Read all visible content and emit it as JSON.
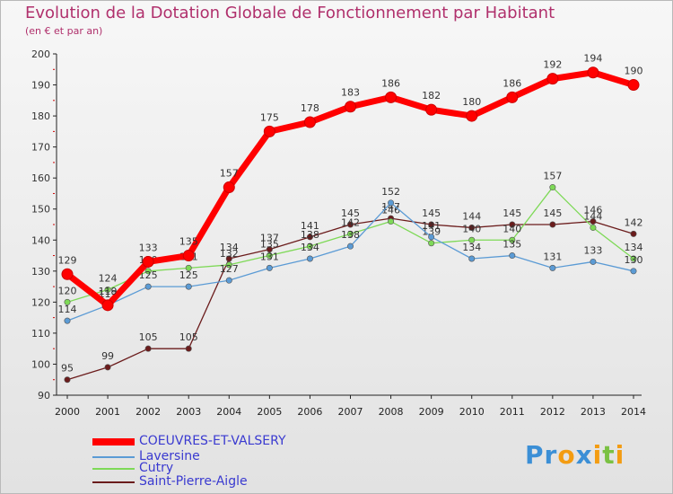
{
  "chart_data": {
    "type": "line",
    "title": "Evolution de la Dotation Globale de Fonctionnement par Habitant",
    "subtitle": "(en € et par an)",
    "ylim": [
      90,
      200
    ],
    "yticks": [
      90,
      100,
      110,
      120,
      130,
      140,
      150,
      160,
      170,
      180,
      190,
      200
    ],
    "x": [
      "2000",
      "2001",
      "2002",
      "2003",
      "2004",
      "2005",
      "2006",
      "2007",
      "2008",
      "2009",
      "2010",
      "2011",
      "2012",
      "2013",
      "2014"
    ],
    "series": [
      {
        "name": "COEUVRES-ET-VALSERY",
        "color": "#ff0000",
        "values": [
          129,
          119,
          133,
          135,
          157,
          175,
          178,
          183,
          186,
          182,
          180,
          186,
          192,
          194,
          190
        ]
      },
      {
        "name": "Laversine",
        "color": "#5b9bd5",
        "values": [
          114,
          119,
          125,
          125,
          127,
          131,
          134,
          138,
          152,
          141,
          134,
          135,
          131,
          133,
          130
        ]
      },
      {
        "name": "Cutry",
        "color": "#7ed957",
        "values": [
          120,
          124,
          130,
          131,
          132,
          135,
          138,
          142,
          146,
          139,
          140,
          140,
          157,
          144,
          134
        ]
      },
      {
        "name": "Saint-Pierre-Aigle",
        "color": "#6b1c1c",
        "values": [
          95,
          99,
          105,
          105,
          134,
          137,
          141,
          145,
          147,
          145,
          144,
          145,
          145,
          146,
          142
        ]
      }
    ]
  },
  "logo": {
    "letters": [
      "P",
      "r",
      "o",
      "x",
      "i",
      "t",
      "i"
    ],
    "colors": [
      "#3b8fd6",
      "#3b8fd6",
      "#f39c12",
      "#3b8fd6",
      "#f39c12",
      "#7ac143",
      "#f39c12"
    ]
  }
}
